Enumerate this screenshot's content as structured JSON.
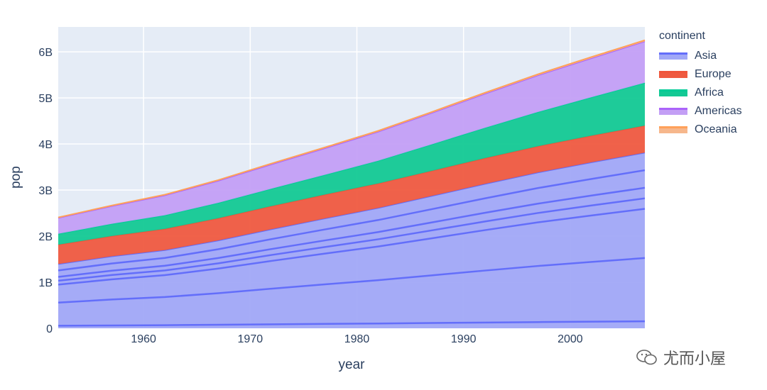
{
  "chart_data": {
    "type": "area",
    "stacked": true,
    "title": "",
    "xlabel": "year",
    "ylabel": "pop",
    "xlim": [
      1952,
      2007
    ],
    "ylim": [
      0,
      6540000000
    ],
    "xticks": [
      1960,
      1970,
      1980,
      1990,
      2000
    ],
    "xtick_labels": [
      "1960",
      "1970",
      "1980",
      "1990",
      "2000"
    ],
    "yticks": [
      0,
      1000000000,
      2000000000,
      3000000000,
      4000000000,
      5000000000,
      6000000000
    ],
    "ytick_labels": [
      "0",
      "1B",
      "2B",
      "3B",
      "4B",
      "5B",
      "6B"
    ],
    "grid": true,
    "legend_title": "continent",
    "legend_position": "right",
    "x": [
      1952,
      1957,
      1962,
      1967,
      1972,
      1977,
      1982,
      1987,
      1992,
      1997,
      2002,
      2007
    ],
    "series": [
      {
        "name": "Asia",
        "color": "#636efa",
        "fill": "#a1a8f7",
        "values": [
          1395,
          1562,
          1697,
          1906,
          2151,
          2384,
          2611,
          2871,
          3133,
          3383,
          3602,
          3812
        ]
      },
      {
        "name": "Europe",
        "color": "#ef553b",
        "fill": "#ef5a40",
        "values": [
          418,
          438,
          460,
          481,
          500,
          517,
          531,
          544,
          558,
          568,
          578,
          586
        ]
      },
      {
        "name": "Africa",
        "color": "#00cc96",
        "fill": "#13c994",
        "values": [
          238,
          265,
          296,
          335,
          379,
          429,
          494,
          575,
          659,
          744,
          834,
          930
        ]
      },
      {
        "name": "Americas",
        "color": "#ab63fa",
        "fill": "#c39ff5",
        "values": [
          345,
          387,
          434,
          481,
          530,
          578,
          631,
          683,
          740,
          797,
          849,
          899
        ]
      },
      {
        "name": "Oceania",
        "color": "#ffa15a",
        "fill": "#f6b78c",
        "values": [
          10.7,
          11.9,
          13.4,
          14.6,
          16.3,
          17.7,
          18.7,
          20.3,
          22.0,
          23.6,
          25.4,
          24.7
        ]
      }
    ],
    "value_unit": "millions"
  },
  "watermark": "尤而小屋"
}
